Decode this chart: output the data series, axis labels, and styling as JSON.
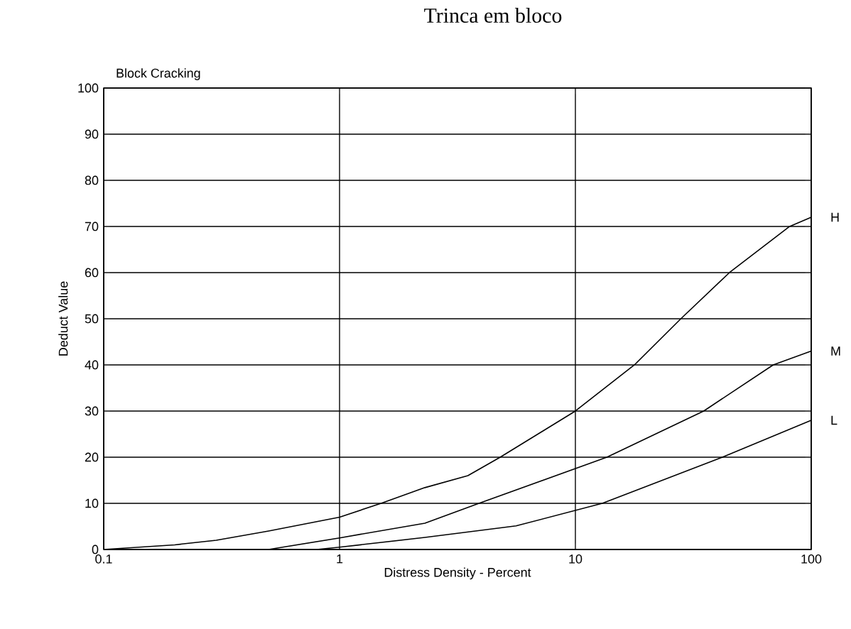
{
  "chart_data": {
    "type": "line",
    "title": "Trinca em bloco",
    "subtitle": "Block Cracking",
    "xlabel": "Distress Density - Percent",
    "ylabel": "Deduct Value",
    "log": "x",
    "grid": true,
    "xlim": [
      0.1,
      100
    ],
    "ylim": [
      0,
      100
    ],
    "xticks": [
      0.1,
      1,
      10,
      100
    ],
    "yticks": [
      0,
      10,
      20,
      30,
      40,
      50,
      60,
      70,
      80,
      90,
      100
    ],
    "series": [
      {
        "name": "H",
        "color": "#000000",
        "x": [
          0.1,
          0.2,
          0.3,
          0.5,
          1,
          1.5,
          2.3,
          3.5,
          4.8,
          10,
          17.8,
          28,
          45,
          81,
          100
        ],
        "values": [
          0,
          1,
          2,
          4,
          7,
          10,
          13.4,
          16,
          20,
          30,
          40,
          50,
          60,
          70,
          72
        ]
      },
      {
        "name": "M",
        "color": "#000000",
        "x": [
          0.5,
          1,
          2.3,
          3.9,
          13.6,
          35,
          69,
          100
        ],
        "values": [
          0,
          2.5,
          5.7,
          10,
          20,
          30,
          40,
          43
        ]
      },
      {
        "name": "L",
        "color": "#000000",
        "x": [
          0.8,
          1,
          2.3,
          5.6,
          13,
          42,
          100
        ],
        "values": [
          0,
          0.5,
          2.6,
          5.1,
          10,
          20,
          28
        ]
      }
    ]
  }
}
